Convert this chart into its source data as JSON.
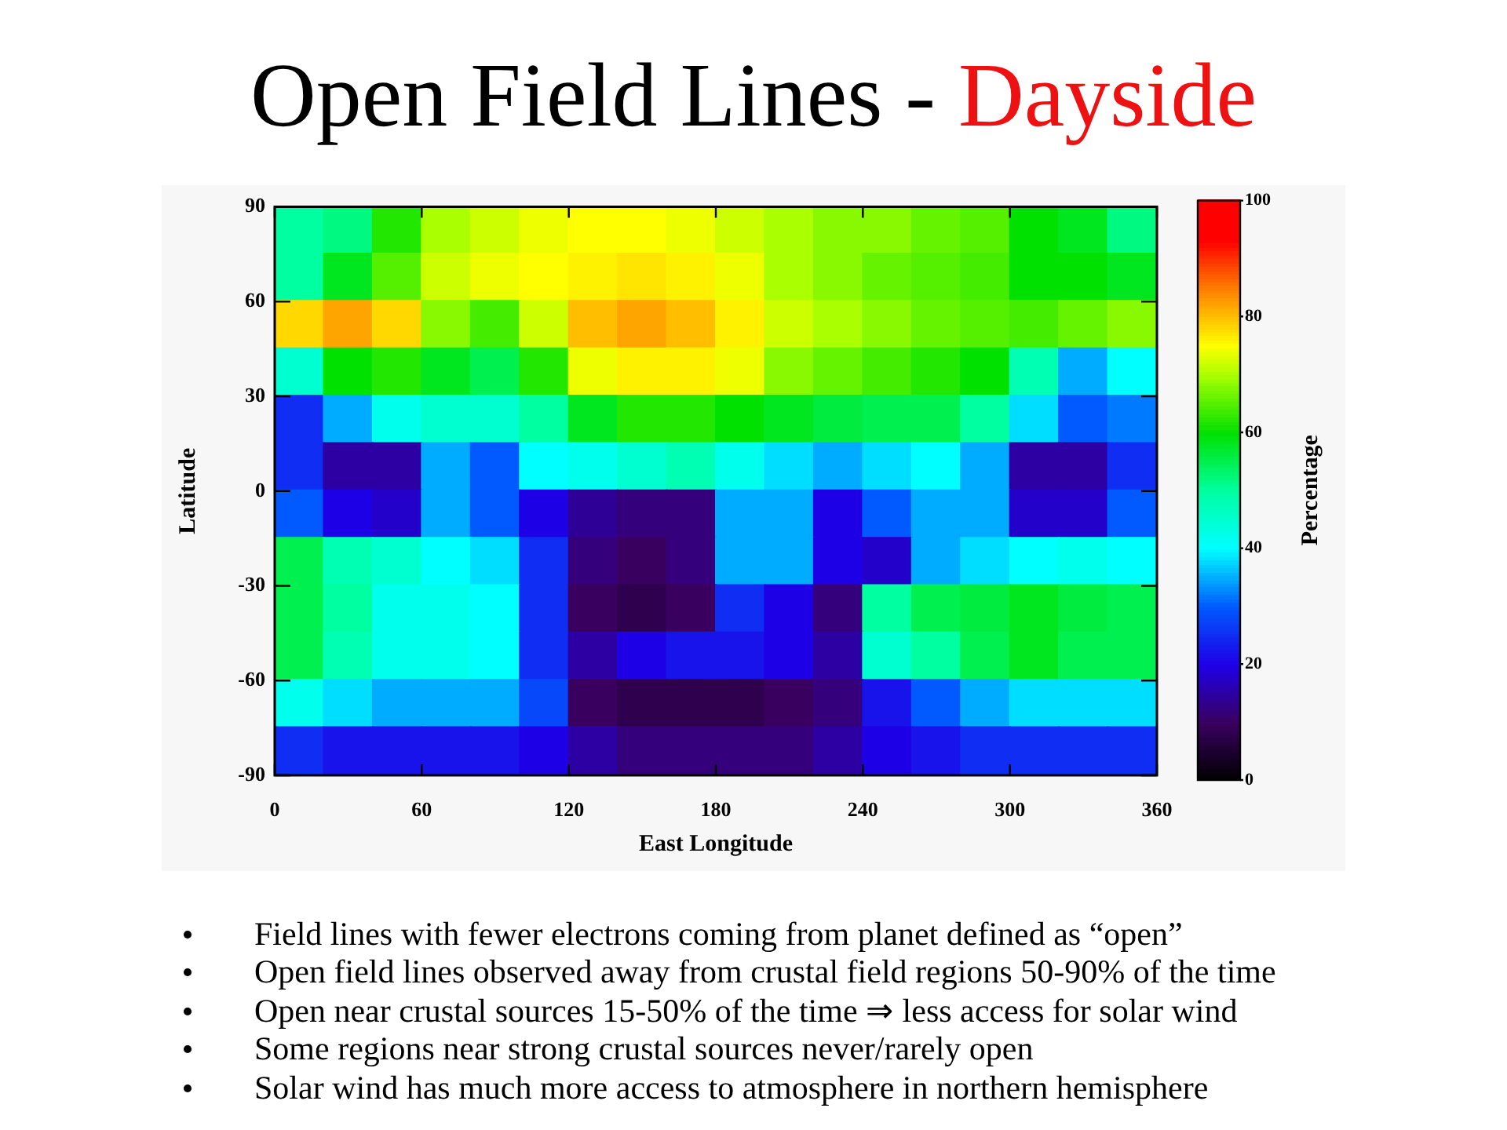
{
  "chart_data": {
    "type": "scatter",
    "title": "Open Field Lines - Dayside",
    "xlabel": "East Longitude",
    "ylabel": "Latitude",
    "clabel": "Percentage",
    "marker": "square",
    "x": [
      10,
      30,
      50,
      70,
      90,
      110,
      130,
      150,
      170,
      190,
      210,
      230,
      250,
      270,
      290,
      310,
      330,
      350,
      10,
      30,
      50,
      70,
      90,
      110,
      130,
      150,
      170,
      190,
      210,
      230,
      250,
      270,
      290,
      310,
      330,
      350,
      10,
      30,
      50,
      70,
      90,
      110,
      130,
      150,
      170,
      190,
      210,
      230,
      250,
      270,
      290,
      310,
      330,
      350,
      10,
      30,
      50,
      70,
      90,
      110,
      130,
      150,
      170,
      190,
      210,
      230,
      250,
      270,
      290,
      310,
      330,
      350,
      10,
      30,
      50,
      70,
      90,
      110,
      130,
      150,
      170,
      190,
      210,
      230,
      250,
      270,
      290,
      310,
      330,
      350,
      10,
      30,
      50,
      70,
      90,
      110,
      130,
      150,
      170,
      190,
      210,
      230,
      250,
      270,
      290,
      310,
      330,
      350,
      10,
      30,
      50,
      70,
      90,
      110,
      130,
      150,
      170,
      190,
      210,
      230,
      250,
      270,
      290,
      310,
      330,
      350,
      10,
      30,
      50,
      70,
      90,
      110,
      130,
      150,
      170,
      190,
      210,
      230,
      250,
      270,
      290,
      310,
      330,
      350,
      10,
      30,
      50,
      70,
      90,
      110,
      130,
      150,
      170,
      190,
      210,
      230,
      250,
      270,
      290,
      310,
      330,
      350,
      10,
      30,
      50,
      70,
      90,
      110,
      130,
      150,
      170,
      190,
      210,
      230,
      250,
      270,
      290,
      310,
      330,
      350,
      10,
      30,
      50,
      70,
      90,
      110,
      130,
      150,
      170,
      190,
      210,
      230,
      250,
      270,
      290,
      310,
      330,
      350,
      10,
      30,
      50,
      70,
      90,
      110,
      130,
      150,
      170,
      190,
      210,
      230,
      250,
      270,
      290,
      310,
      330,
      350
    ],
    "values": [
      82.5,
      82.5,
      82.5,
      82.5,
      82.5,
      82.5,
      82.5,
      82.5,
      82.5,
      82.5,
      82.5,
      82.5,
      82.5,
      82.5,
      82.5,
      82.5,
      82.5,
      82.5,
      67.5,
      67.5,
      67.5,
      67.5,
      67.5,
      67.5,
      67.5,
      67.5,
      67.5,
      67.5,
      67.5,
      67.5,
      67.5,
      67.5,
      67.5,
      67.5,
      67.5,
      67.5,
      52.5,
      52.5,
      52.5,
      52.5,
      52.5,
      52.5,
      52.5,
      52.5,
      52.5,
      52.5,
      52.5,
      52.5,
      52.5,
      52.5,
      52.5,
      52.5,
      52.5,
      52.5,
      37.5,
      37.5,
      37.5,
      37.5,
      37.5,
      37.5,
      37.5,
      37.5,
      37.5,
      37.5,
      37.5,
      37.5,
      37.5,
      37.5,
      37.5,
      37.5,
      37.5,
      37.5,
      22.5,
      22.5,
      22.5,
      22.5,
      22.5,
      22.5,
      22.5,
      22.5,
      22.5,
      22.5,
      22.5,
      22.5,
      22.5,
      22.5,
      22.5,
      22.5,
      22.5,
      22.5,
      7.5,
      7.5,
      7.5,
      7.5,
      7.5,
      7.5,
      7.5,
      7.5,
      7.5,
      7.5,
      7.5,
      7.5,
      7.5,
      7.5,
      7.5,
      7.5,
      7.5,
      7.5,
      -7.5,
      -7.5,
      -7.5,
      -7.5,
      -7.5,
      -7.5,
      -7.5,
      -7.5,
      -7.5,
      -7.5,
      -7.5,
      -7.5,
      -7.5,
      -7.5,
      -7.5,
      -7.5,
      -7.5,
      -7.5,
      -22.5,
      -22.5,
      -22.5,
      -22.5,
      -22.5,
      -22.5,
      -22.5,
      -22.5,
      -22.5,
      -22.5,
      -22.5,
      -22.5,
      -22.5,
      -22.5,
      -22.5,
      -22.5,
      -22.5,
      -22.5,
      -37.5,
      -37.5,
      -37.5,
      -37.5,
      -37.5,
      -37.5,
      -37.5,
      -37.5,
      -37.5,
      -37.5,
      -37.5,
      -37.5,
      -37.5,
      -37.5,
      -37.5,
      -37.5,
      -37.5,
      -37.5,
      -52.5,
      -52.5,
      -52.5,
      -52.5,
      -52.5,
      -52.5,
      -52.5,
      -52.5,
      -52.5,
      -52.5,
      -52.5,
      -52.5,
      -52.5,
      -52.5,
      -52.5,
      -52.5,
      -52.5,
      -52.5,
      -67.5,
      -67.5,
      -67.5,
      -67.5,
      -67.5,
      -67.5,
      -67.5,
      -67.5,
      -67.5,
      -67.5,
      -67.5,
      -67.5,
      -67.5,
      -67.5,
      -67.5,
      -67.5,
      -67.5,
      -67.5,
      -82.5,
      -82.5,
      -82.5,
      -82.5,
      -82.5,
      -82.5,
      -82.5,
      -82.5,
      -82.5,
      -82.5,
      -82.5,
      -82.5,
      -82.5,
      -82.5,
      -82.5,
      -82.5,
      -82.5,
      -82.5
    ],
    "cvalues": [
      50,
      52,
      62,
      70,
      72,
      74,
      75,
      75,
      74,
      72,
      70,
      68,
      68,
      66,
      65,
      60,
      58,
      52,
      50,
      58,
      65,
      72,
      74,
      75,
      76,
      77,
      76,
      74,
      70,
      68,
      66,
      65,
      64,
      60,
      60,
      58,
      78,
      82,
      78,
      68,
      64,
      72,
      80,
      82,
      80,
      76,
      72,
      70,
      68,
      66,
      65,
      64,
      66,
      68,
      45,
      60,
      62,
      58,
      55,
      62,
      74,
      76,
      76,
      74,
      68,
      66,
      64,
      62,
      60,
      48,
      35,
      40,
      25,
      35,
      42,
      45,
      45,
      50,
      58,
      62,
      62,
      60,
      58,
      56,
      55,
      55,
      50,
      38,
      30,
      32,
      25,
      15,
      15,
      35,
      30,
      40,
      42,
      45,
      48,
      42,
      38,
      35,
      38,
      40,
      35,
      15,
      15,
      25,
      30,
      20,
      18,
      35,
      30,
      20,
      14,
      12,
      12,
      35,
      35,
      20,
      30,
      35,
      35,
      18,
      18,
      30,
      55,
      48,
      45,
      40,
      38,
      25,
      12,
      10,
      12,
      35,
      35,
      20,
      18,
      35,
      38,
      40,
      42,
      40,
      55,
      50,
      42,
      42,
      40,
      25,
      10,
      8,
      10,
      25,
      20,
      12,
      50,
      55,
      56,
      58,
      56,
      55,
      55,
      48,
      42,
      42,
      40,
      25,
      15,
      20,
      22,
      22,
      20,
      15,
      45,
      50,
      55,
      58,
      55,
      55,
      42,
      38,
      35,
      35,
      35,
      28,
      10,
      8,
      8,
      8,
      10,
      12,
      22,
      30,
      35,
      38,
      38,
      38,
      25,
      22,
      22,
      22,
      22,
      20,
      15,
      12,
      12,
      12,
      12,
      15,
      20,
      22,
      25,
      25,
      25,
      25
    ],
    "xlim": [
      0,
      360
    ],
    "xticks": [
      0,
      60,
      120,
      180,
      240,
      300,
      360
    ],
    "ylim": [
      -90,
      90
    ],
    "yticks": [
      -90,
      -60,
      -30,
      0,
      30,
      60,
      90
    ],
    "clim": [
      0,
      100
    ],
    "cticks": [
      0,
      20,
      40,
      60,
      80,
      100
    ],
    "annotations": [
      "Field lines with fewer electrons coming from planet defined as “open”",
      "Open field lines observed away from crustal field regions 50-90% of the time",
      "Open near crustal sources 15-50% of the time ⇒ less access for solar wind",
      "Some regions near strong crustal sources never/rarely open",
      "Solar wind has much more access to atmosphere in northern hemisphere"
    ]
  }
}
